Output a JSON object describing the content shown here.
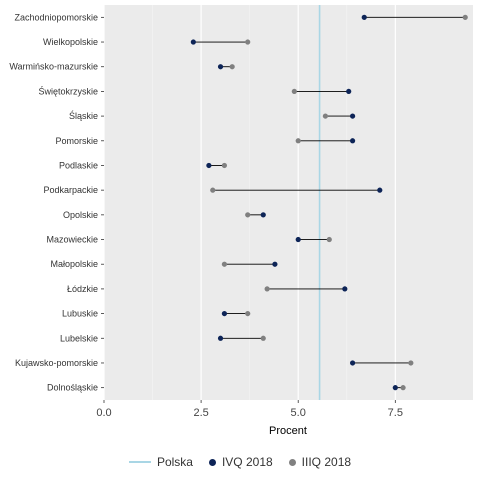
{
  "chart_data": {
    "type": "dumbbell",
    "xlabel": "Procent",
    "xlim": [
      0,
      9.5
    ],
    "xticks": [
      "0.0",
      "2.5",
      "5.0",
      "7.5"
    ],
    "xtick_values": [
      0,
      2.5,
      5.0,
      7.5
    ],
    "grid": true,
    "legend_position": "bottom",
    "reference_line": {
      "name": "Polska",
      "value": 5.55,
      "color": "#a9d6e5"
    },
    "series": [
      {
        "name": "IVQ 2018",
        "color": "#0d2457",
        "values": [
          6.7,
          2.3,
          3.0,
          6.3,
          6.4,
          6.4,
          2.7,
          7.1,
          4.1,
          5.0,
          4.4,
          6.2,
          3.1,
          3.0,
          6.4,
          7.5
        ]
      },
      {
        "name": "IIIQ 2018",
        "color": "#808080",
        "values": [
          9.3,
          3.7,
          3.3,
          4.9,
          5.7,
          5.0,
          3.1,
          2.8,
          3.7,
          5.8,
          3.1,
          4.2,
          3.7,
          4.1,
          7.9,
          7.7
        ]
      }
    ],
    "categories": [
      "Zachodniopomorskie",
      "Wielkopolskie",
      "Warmińsko-mazurskie",
      "Świętokrzyskie",
      "Śląskie",
      "Pomorskie",
      "Podlaskie",
      "Podkarpackie",
      "Opolskie",
      "Mazowieckie",
      "Małopolskie",
      "Łódzkie",
      "Lubuskie",
      "Lubelskie",
      "Kujawsko-pomorskie",
      "Dolnośląskie"
    ]
  },
  "legend": {
    "polska_label": "Polska",
    "ivq_label": "IVQ 2018",
    "iiiq_label": "IIIQ 2018"
  }
}
